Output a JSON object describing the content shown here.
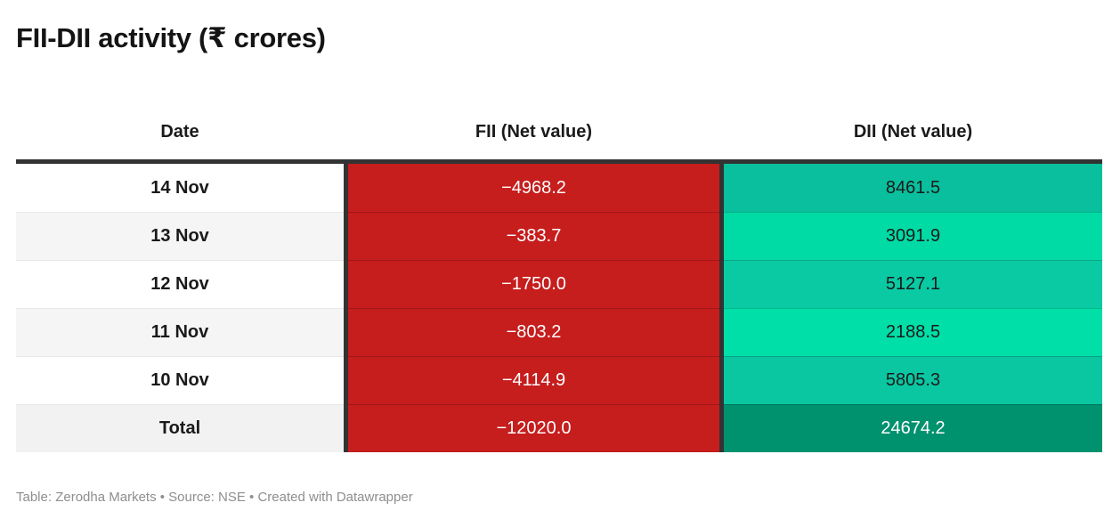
{
  "title": "FII-DII activity (₹ crores)",
  "table": {
    "columns": [
      "Date",
      "FII (Net value)",
      "DII (Net value)"
    ],
    "rows": [
      {
        "date": "14 Nov",
        "fii": "−4968.2",
        "dii": "8461.5",
        "date_bg": "#ffffff",
        "fii_bg": "#c61d1d",
        "fii_text": "#ffffff",
        "dii_bg": "#09bf9d",
        "dii_text": "#1a1a1a"
      },
      {
        "date": "13 Nov",
        "fii": "−383.7",
        "dii": "3091.9",
        "date_bg": "#f5f5f5",
        "fii_bg": "#c61d1d",
        "fii_text": "#ffffff",
        "dii_bg": "#00dba6",
        "dii_text": "#1a1a1a"
      },
      {
        "date": "12 Nov",
        "fii": "−1750.0",
        "dii": "5127.1",
        "date_bg": "#ffffff",
        "fii_bg": "#c61d1d",
        "fii_text": "#ffffff",
        "dii_bg": "#0acaa4",
        "dii_text": "#1a1a1a"
      },
      {
        "date": "11 Nov",
        "fii": "−803.2",
        "dii": "2188.5",
        "date_bg": "#f5f5f5",
        "fii_bg": "#c61d1d",
        "fii_text": "#ffffff",
        "dii_bg": "#00dfa8",
        "dii_text": "#1a1a1a"
      },
      {
        "date": "10 Nov",
        "fii": "−4114.9",
        "dii": "5805.3",
        "date_bg": "#ffffff",
        "fii_bg": "#c61d1d",
        "fii_text": "#ffffff",
        "dii_bg": "#0ac7a2",
        "dii_text": "#1a1a1a"
      },
      {
        "date": "Total",
        "fii": "−12020.0",
        "dii": "24674.2",
        "date_bg": "#f2f2f2",
        "fii_bg": "#c61d1d",
        "fii_text": "#ffffff",
        "dii_bg": "#00916e",
        "dii_text": "#ffffff"
      }
    ]
  },
  "footer": "Table: Zerodha Markets • Source: NSE • Created with Datawrapper",
  "colors": {
    "top_border": "#333333",
    "column_divider": "#333333",
    "fii_negative_red": "#c61d1d",
    "dii_green_light": "#00dfa8",
    "dii_green_mid": "#0ac7a2",
    "dii_green_total": "#00916e",
    "text_dark": "#1a1a1a",
    "footer_gray": "#8e8e8e"
  },
  "chart_data": {
    "type": "table",
    "title": "FII-DII activity (₹ crores)",
    "columns": [
      "Date",
      "FII (Net value)",
      "DII (Net value)"
    ],
    "rows": [
      [
        "14 Nov",
        -4968.2,
        8461.5
      ],
      [
        "13 Nov",
        -383.7,
        3091.9
      ],
      [
        "12 Nov",
        -1750.0,
        5127.1
      ],
      [
        "11 Nov",
        -803.2,
        2188.5
      ],
      [
        "10 Nov",
        -4114.9,
        5805.3
      ],
      [
        "Total",
        -12020.0,
        24674.2
      ]
    ],
    "layout_hints": "FII column shaded solid red (negative values, white text); DII column green heatmap where darker = larger value; Total row darkest green with white text; zebra striping on Date column"
  }
}
